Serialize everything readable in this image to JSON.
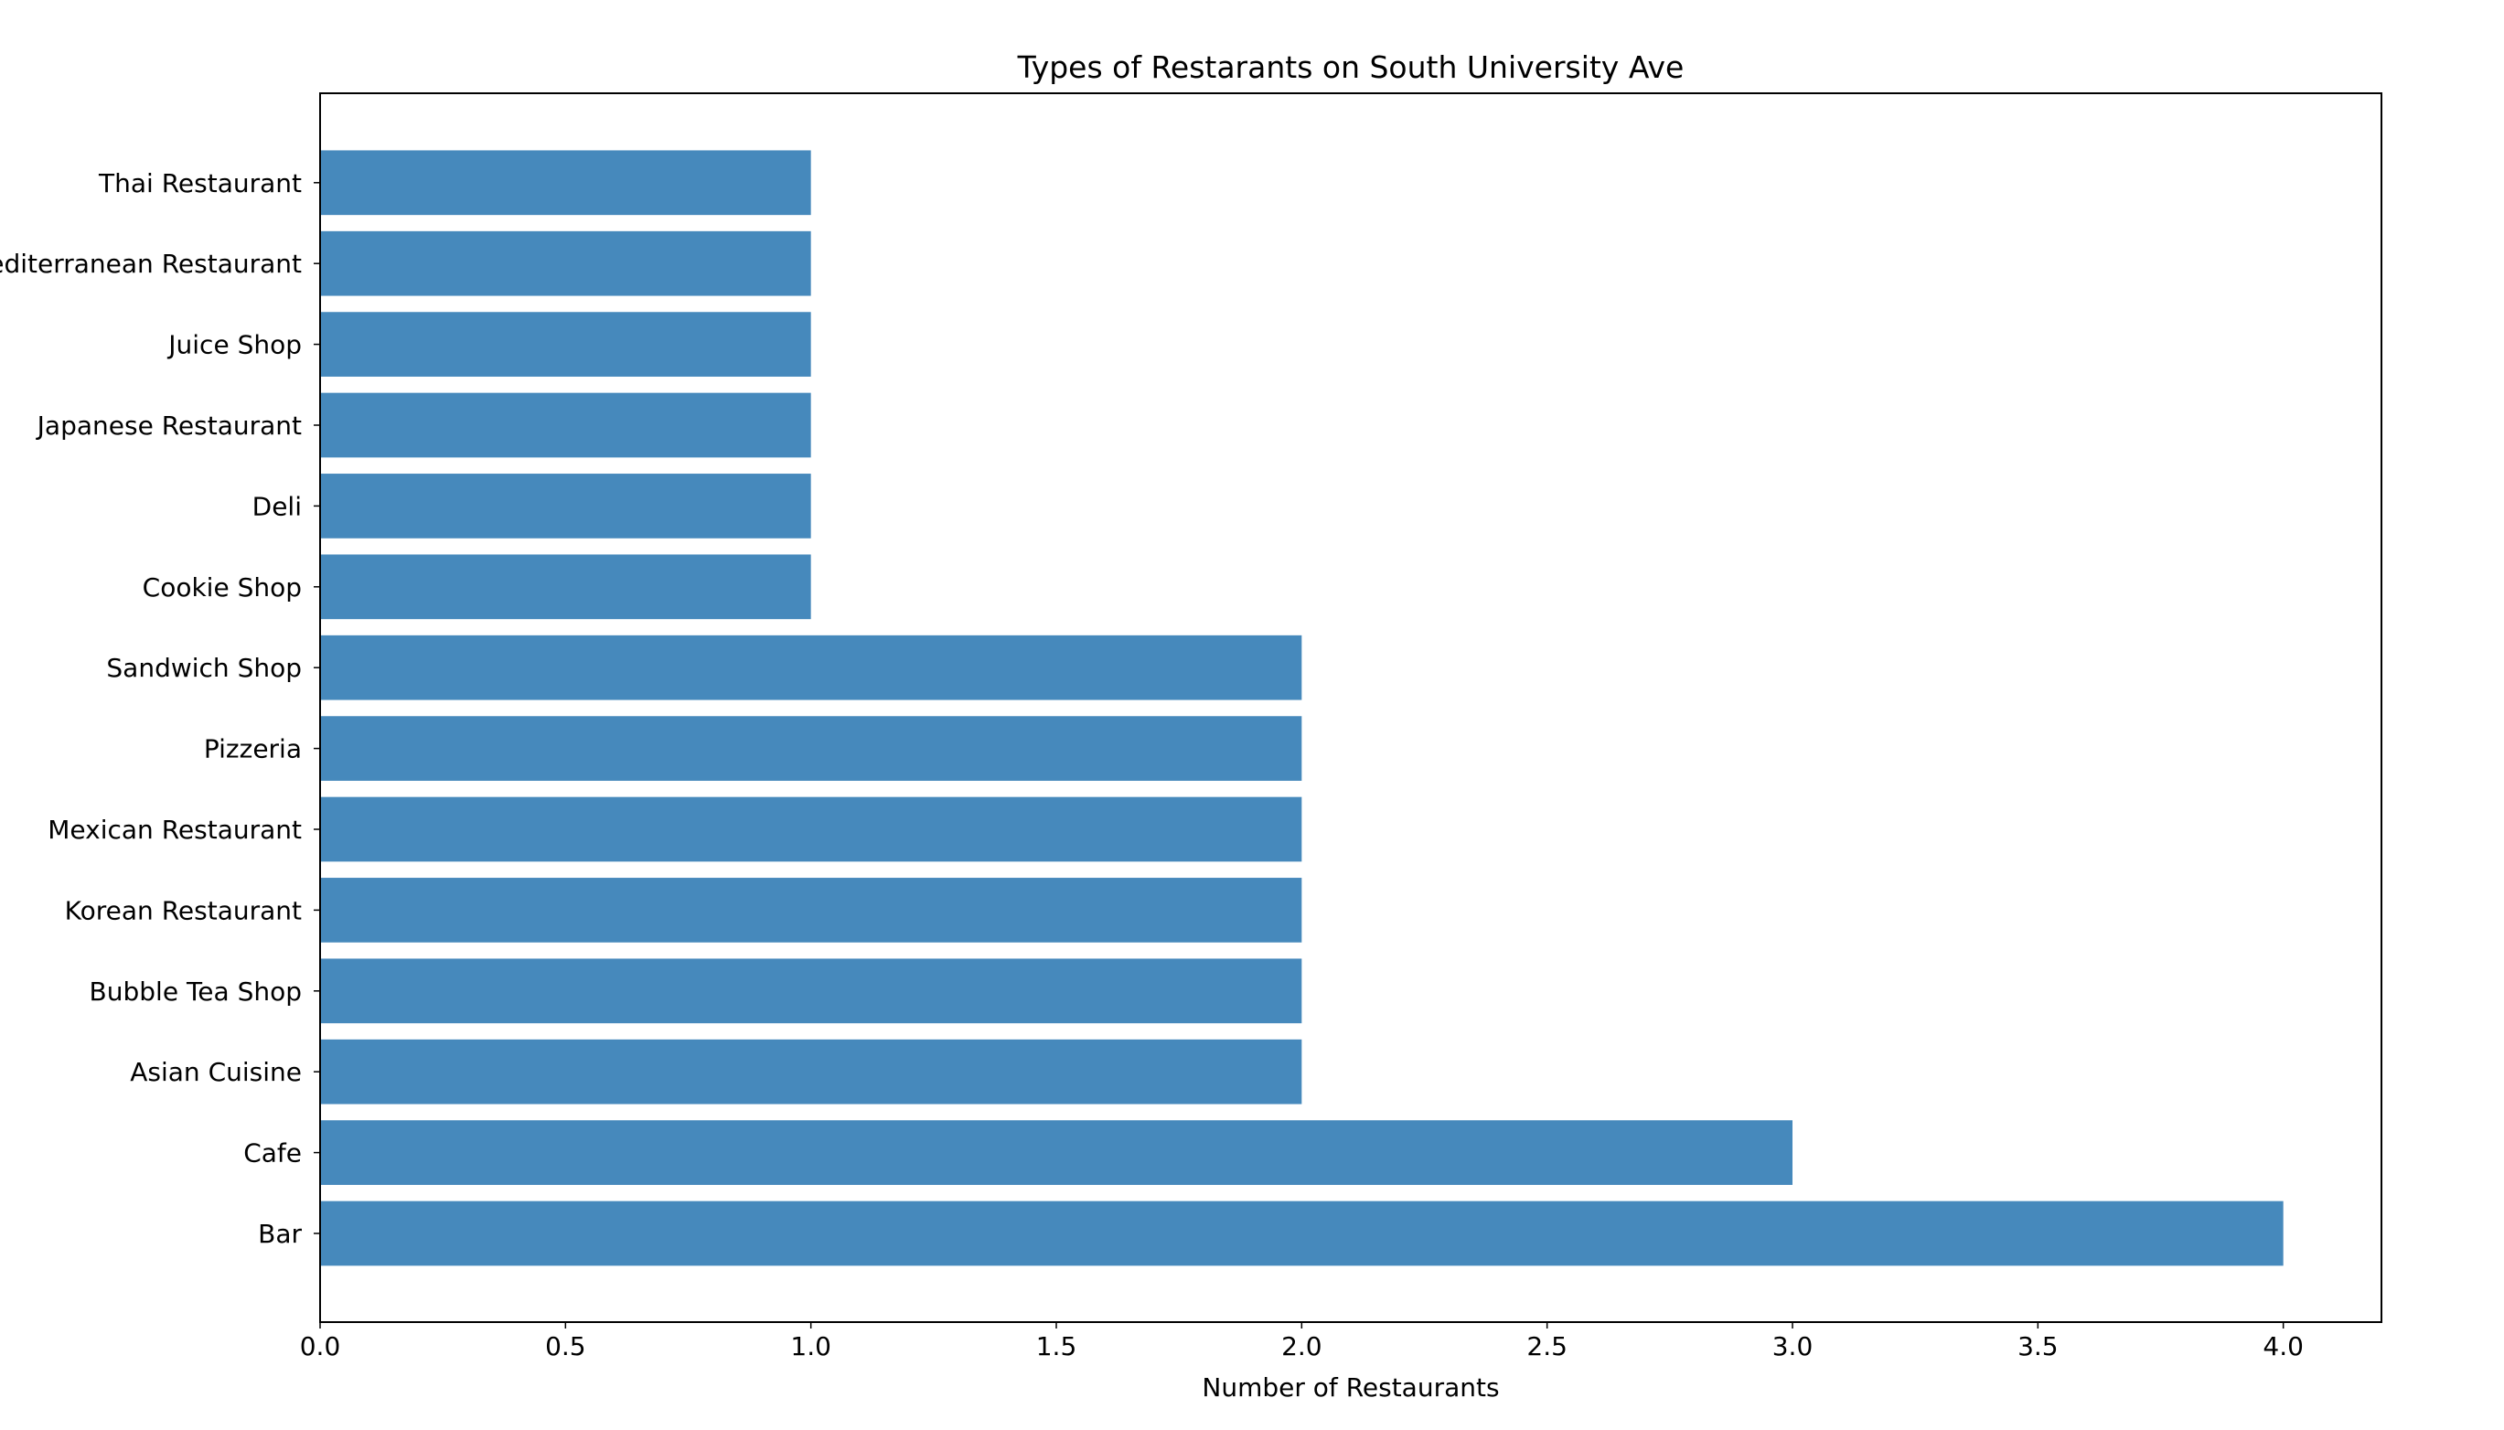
{
  "chart_data": {
    "type": "bar",
    "orientation": "horizontal",
    "title": "Types of Restarants on South University Ave",
    "xlabel": "Number of Restaurants",
    "ylabel": "",
    "xlim": [
      0,
      4.2
    ],
    "x_ticks": [
      0.0,
      0.5,
      1.0,
      1.5,
      2.0,
      2.5,
      3.0,
      3.5,
      4.0
    ],
    "x_tick_labels": [
      "0.0",
      "0.5",
      "1.0",
      "1.5",
      "2.0",
      "2.5",
      "3.0",
      "3.5",
      "4.0"
    ],
    "categories": [
      "Bar",
      "Cafe",
      "Asian Cuisine ",
      "Bubble Tea Shop",
      "Korean Restaurant",
      "Mexican Restaurant",
      "Pizzeria",
      "Sandwich Shop",
      "Cookie Shop",
      "Deli",
      "Japanese Restaurant",
      "Juice Shop",
      "Mediterranean Restaurant",
      "Thai Restaurant"
    ],
    "values": [
      4,
      3,
      2,
      2,
      2,
      2,
      2,
      2,
      1,
      1,
      1,
      1,
      1,
      1
    ],
    "bar_color": "#4689bc",
    "grid": false,
    "legend": "none"
  }
}
